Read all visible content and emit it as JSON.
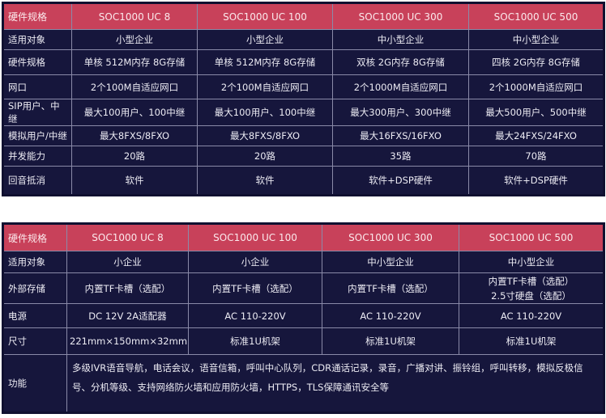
{
  "colors": {
    "header_bg": "#c8415a",
    "table_bg": "#16163c",
    "text": "#ecebf3"
  },
  "table1": {
    "header": [
      "硬件规格",
      "SOC1000 UC 8",
      "SOC1000 UC 100",
      "SOC1000 UC 300",
      "SOC1000 UC 500"
    ],
    "rows": [
      [
        "适用对象",
        "小型企业",
        "小型企业",
        "中小型企业",
        "中小型企业"
      ],
      [
        "硬件规格",
        "单核 512M内存 8G存储",
        "单核 512M内存 8G存储",
        "双核 2G内存 8G存储",
        "四核 2G内存 8G存储"
      ],
      [
        "网口",
        "2个100M自适应网口",
        "2个100M自适应网口",
        "2个1000M自适应网口",
        "2个1000M自适应网口"
      ],
      [
        "SIP用户、中继",
        "最大100用户、100中继",
        "最大100用户、100中继",
        "最大300用户、300中继",
        "最大500用户、500中继"
      ],
      [
        "模拟用户/中继",
        "最大8FXS/8FXO",
        "最大8FXS/8FXO",
        "最大16FXS/16FXO",
        "最大24FXS/24FXO"
      ],
      [
        "并发能力",
        "20路",
        "20路",
        "35路",
        "70路"
      ],
      [
        "回音抵消",
        "软件",
        "软件",
        "软件+DSP硬件",
        "软件+DSP硬件"
      ]
    ]
  },
  "table2": {
    "header": [
      "硬件规格",
      "SOC1000 UC 8",
      "SOC1000 UC 100",
      "SOC1000 UC 300",
      "SOC1000 UC 500"
    ],
    "rows": [
      [
        "适用对象",
        "小企业",
        "小企业",
        "中小型企业",
        "中小型企业"
      ],
      [
        "外部存储",
        "内置TF卡槽（选配）",
        "内置TF卡槽（选配）",
        "内置TF卡槽（选配）",
        "内置TF卡槽（选配）"
      ],
      [
        "电源",
        "DC 12V 2A适配器",
        "AC 110-220V",
        "AC 110-220V",
        "AC 110-220V"
      ],
      [
        "尺寸",
        "221mm×150mm×32mm",
        "标准1U机架",
        "标准1U机架",
        "标准1U机架"
      ]
    ],
    "storage_extra": "2.5寸硬盘（选配）",
    "function_label": "功能",
    "function_text": "多级IVR语音导航，电话会议，语音信箱，呼叫中心队列，CDR通话记录，录音，广播对讲、振铃组，呼叫转移，模拟反极信号、分机等级、支持网络防火墙和应用防火墙，HTTPS，TLS保障通讯安全等"
  }
}
